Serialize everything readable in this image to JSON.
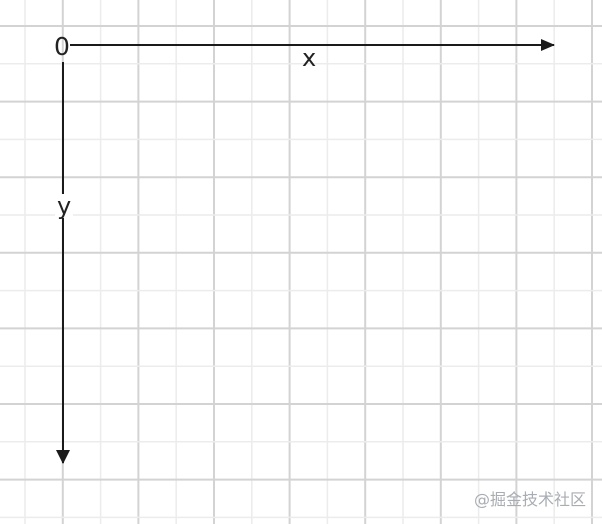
{
  "axes": {
    "origin_label": "0",
    "x_label": "x",
    "y_label": "y"
  },
  "watermark": "@掘金技术社区",
  "colors": {
    "grid_major": "#d3d3d3",
    "grid_minor": "#ececec",
    "axis": "#1a1a1a",
    "watermark": "#a9adb3"
  }
}
